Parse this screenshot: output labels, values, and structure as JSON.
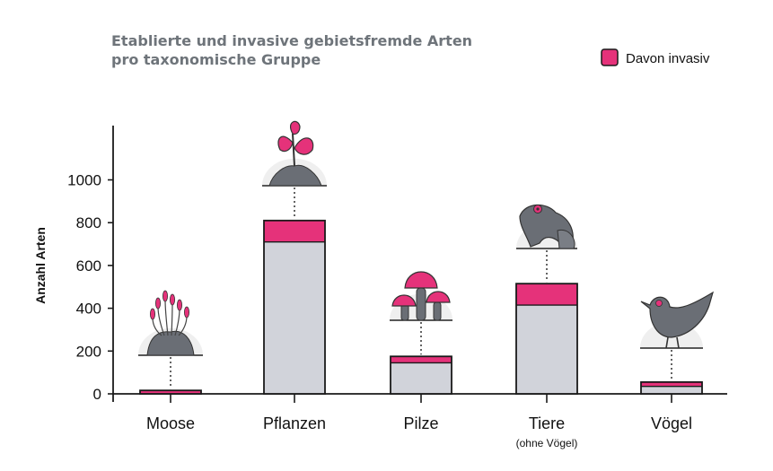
{
  "chart_data": {
    "type": "bar",
    "title_lines": [
      "Etablierte und invasive gebietsfremde Arten",
      "pro taxonomische Gruppe"
    ],
    "ylabel": "Anzahl Arten",
    "xlabel": "",
    "ylim": [
      0,
      1200
    ],
    "yticks": [
      0,
      200,
      400,
      600,
      800,
      1000
    ],
    "categories": [
      "Moose",
      "Pflanzen",
      "Pilze",
      "Tiere",
      "Vögel"
    ],
    "category_sublabels": [
      "",
      "",
      "",
      "(ohne Vögel)",
      ""
    ],
    "series": [
      {
        "name": "",
        "role": "established",
        "values": [
          16,
          810,
          175,
          515,
          55
        ]
      },
      {
        "name": "Davon invasiv",
        "role": "invasive",
        "values": [
          16,
          100,
          30,
          100,
          20
        ]
      }
    ],
    "legend": {
      "entries": [
        "Davon invasiv"
      ],
      "position": "top-right"
    },
    "icons": [
      "moss-icon",
      "plant-sprout-icon",
      "mushroom-icon",
      "frog-icon",
      "bird-icon"
    ],
    "colors": {
      "established": "#d1d3da",
      "invasive": "#e5327a",
      "outline": "#1a1a1a",
      "icon": "#6a6e75",
      "title": "#6e747a"
    },
    "grid": false
  }
}
